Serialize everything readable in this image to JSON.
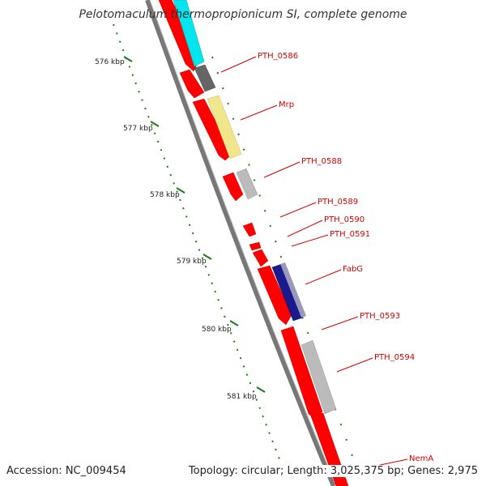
{
  "title": "Pelotomaculum thermopropionicum SI, complete genome",
  "footer": {
    "accession": "Accession: NC_009454",
    "summary": "Topology: circular; Length: 3,025,375 bp; Genes: 2,975"
  },
  "colors": {
    "gene": "#ff0000",
    "backbone": "#888888",
    "tick": "#1a7a1a",
    "label": "#d40000",
    "cyan": "#00e5ee",
    "darkgray": "#666666",
    "lightyellow": "#f0e68c",
    "lightgray": "#bbbbbb",
    "navy": "#1a1a8c"
  },
  "ticks": [
    {
      "label": "576 kbp"
    },
    {
      "label": "577 kbp"
    },
    {
      "label": "578 kbp"
    },
    {
      "label": "579 kbp"
    },
    {
      "label": "580 kbp"
    },
    {
      "label": "581 kbp"
    }
  ],
  "genes": [
    {
      "label": "PTH_0586"
    },
    {
      "label": "Mrp"
    },
    {
      "label": "PTH_0588"
    },
    {
      "label": "PTH_0589"
    },
    {
      "label": "PTH_0590"
    },
    {
      "label": "PTH_0591"
    },
    {
      "label": "FabG"
    },
    {
      "label": "PTH_0593"
    },
    {
      "label": "PTH_0594"
    },
    {
      "label": "NemA"
    }
  ]
}
